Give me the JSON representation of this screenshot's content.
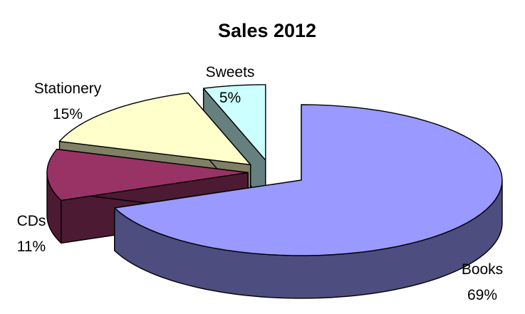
{
  "chart_data": {
    "type": "pie",
    "title": "Sales 2012",
    "style": "3d-exploded",
    "slices": [
      {
        "label": "Books",
        "value": 69,
        "value_label": "69%",
        "color_top": "#9999ff",
        "color_side": "#4d4d80"
      },
      {
        "label": "CDs",
        "value": 11,
        "value_label": "11%",
        "color_top": "#993366",
        "color_side": "#4d1a33"
      },
      {
        "label": "Stationery",
        "value": 15,
        "value_label": "15%",
        "color_top": "#ffffcc",
        "color_side": "#808066"
      },
      {
        "label": "Sweets",
        "value": 5,
        "value_label": "5%",
        "color_top": "#ccffff",
        "color_side": "#668080"
      }
    ]
  }
}
